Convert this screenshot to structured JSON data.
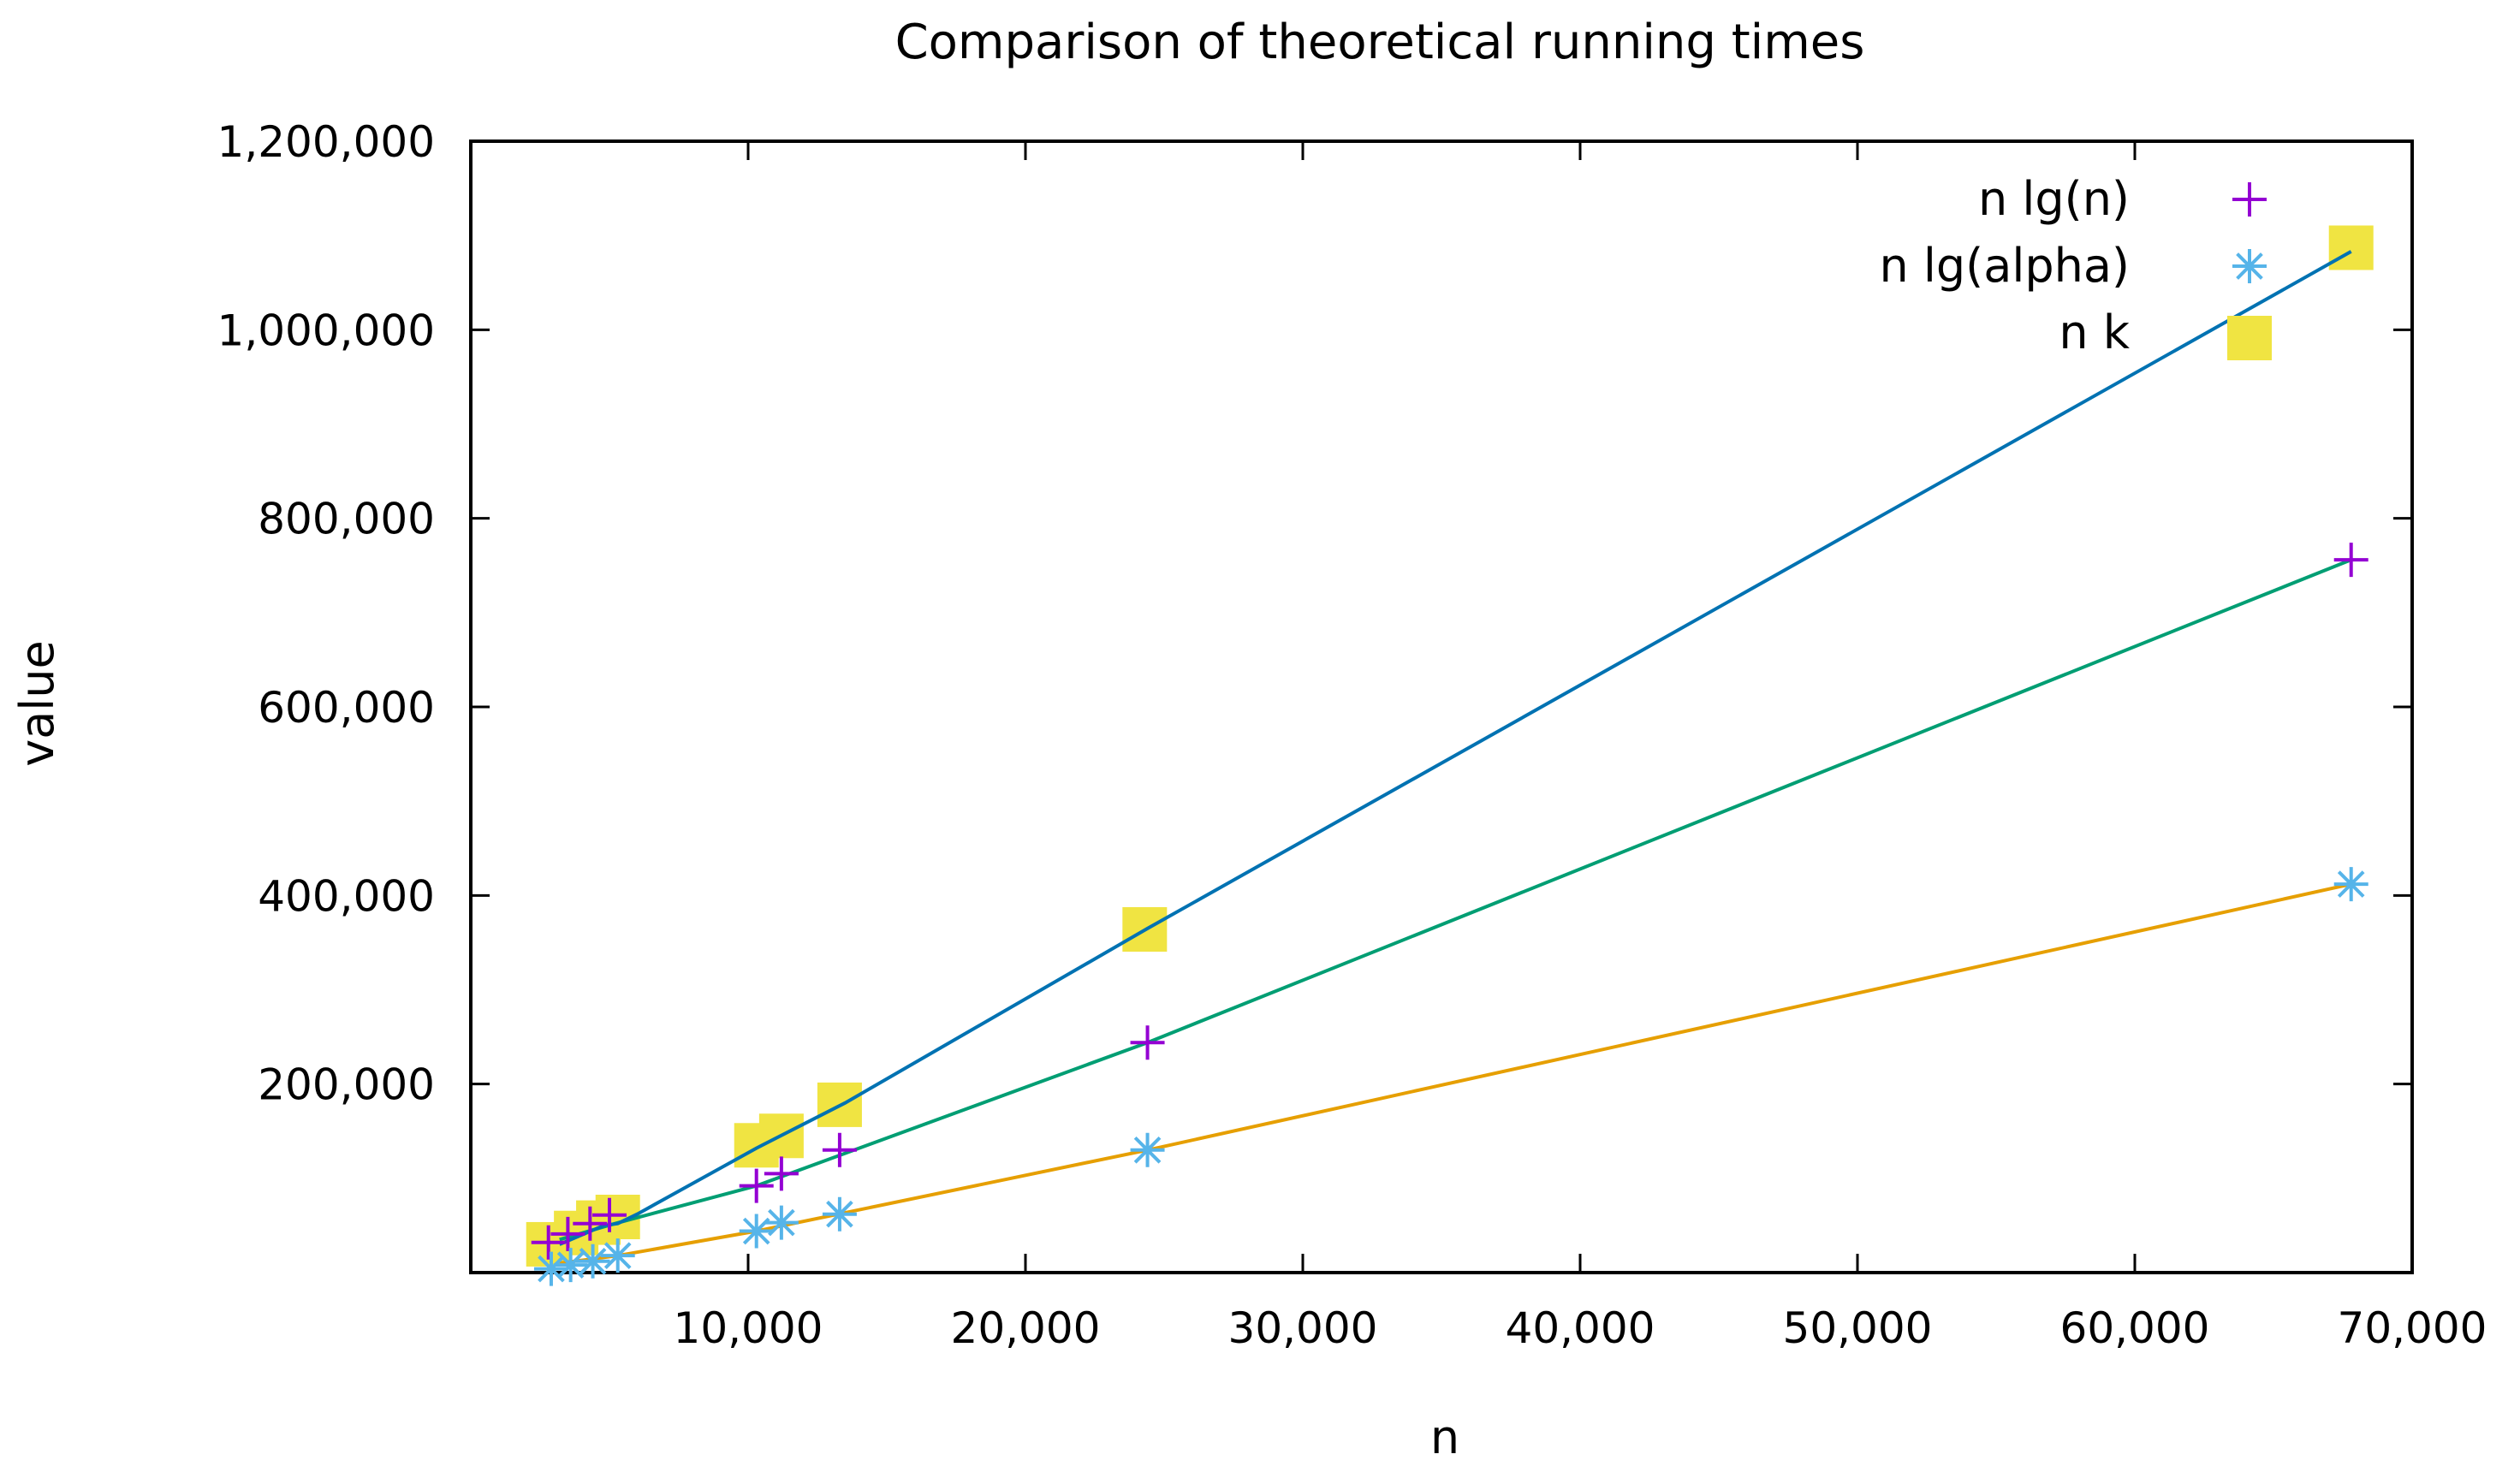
{
  "chart_data": {
    "type": "scatter",
    "title": "Comparison of theoretical running times",
    "xlabel": "n",
    "ylabel": "value",
    "xlim": [
      0,
      70000
    ],
    "ylim": [
      0,
      1200000
    ],
    "xticks": [
      10000,
      20000,
      30000,
      40000,
      50000,
      60000,
      70000
    ],
    "xtick_labels": [
      "10,000",
      "20,000",
      "30,000",
      "40,000",
      "50,000",
      "60,000",
      "70,000"
    ],
    "yticks": [
      200000,
      400000,
      600000,
      800000,
      1000000,
      1200000
    ],
    "ytick_labels": [
      "200,000",
      "400,000",
      "600,000",
      "800,000",
      "1,000,000",
      "1,200,000"
    ],
    "legend_position": "top-right",
    "series": [
      {
        "name": "n lg(n)",
        "marker": "plus",
        "color": "#9400d3",
        "fit_color": "#009e73",
        "points": [
          [
            2800,
            32000
          ],
          [
            3500,
            41000
          ],
          [
            4300,
            52000
          ],
          [
            5000,
            61000
          ],
          [
            10300,
            92000
          ],
          [
            11200,
            105000
          ],
          [
            13300,
            130000
          ],
          [
            24400,
            244000
          ],
          [
            67800,
            756000
          ]
        ],
        "fit": [
          [
            3200,
            35000
          ],
          [
            5200,
            52000
          ],
          [
            10300,
            92000
          ],
          [
            24400,
            244000
          ],
          [
            67800,
            756000
          ]
        ]
      },
      {
        "name": "n lg(alpha)",
        "marker": "asterisk",
        "color": "#56b4e9",
        "fit_color": "#e69f00",
        "points": [
          [
            2900,
            4000
          ],
          [
            3600,
            8000
          ],
          [
            4400,
            12000
          ],
          [
            5300,
            18000
          ],
          [
            10300,
            44000
          ],
          [
            11200,
            53000
          ],
          [
            13300,
            62000
          ],
          [
            24400,
            130000
          ],
          [
            67800,
            412000
          ]
        ],
        "fit": [
          [
            3200,
            10000
          ],
          [
            5300,
            18000
          ],
          [
            10300,
            44000
          ],
          [
            24400,
            130000
          ],
          [
            67800,
            412000
          ]
        ]
      },
      {
        "name": "n k",
        "marker": "square",
        "color": "#f0e442",
        "fit_color": "#0072b2",
        "points": [
          [
            2800,
            30000
          ],
          [
            3800,
            42000
          ],
          [
            4600,
            53000
          ],
          [
            5300,
            59000
          ],
          [
            10300,
            135000
          ],
          [
            11200,
            145000
          ],
          [
            13300,
            178000
          ],
          [
            24300,
            364000
          ],
          [
            67800,
            1087000
          ]
        ],
        "fit": [
          [
            3200,
            30000
          ],
          [
            4800,
            50000
          ],
          [
            5300,
            52000
          ],
          [
            6000,
            62000
          ],
          [
            10300,
            132000
          ],
          [
            13500,
            180000
          ],
          [
            24400,
            365000
          ],
          [
            67800,
            1083000
          ]
        ]
      }
    ]
  }
}
